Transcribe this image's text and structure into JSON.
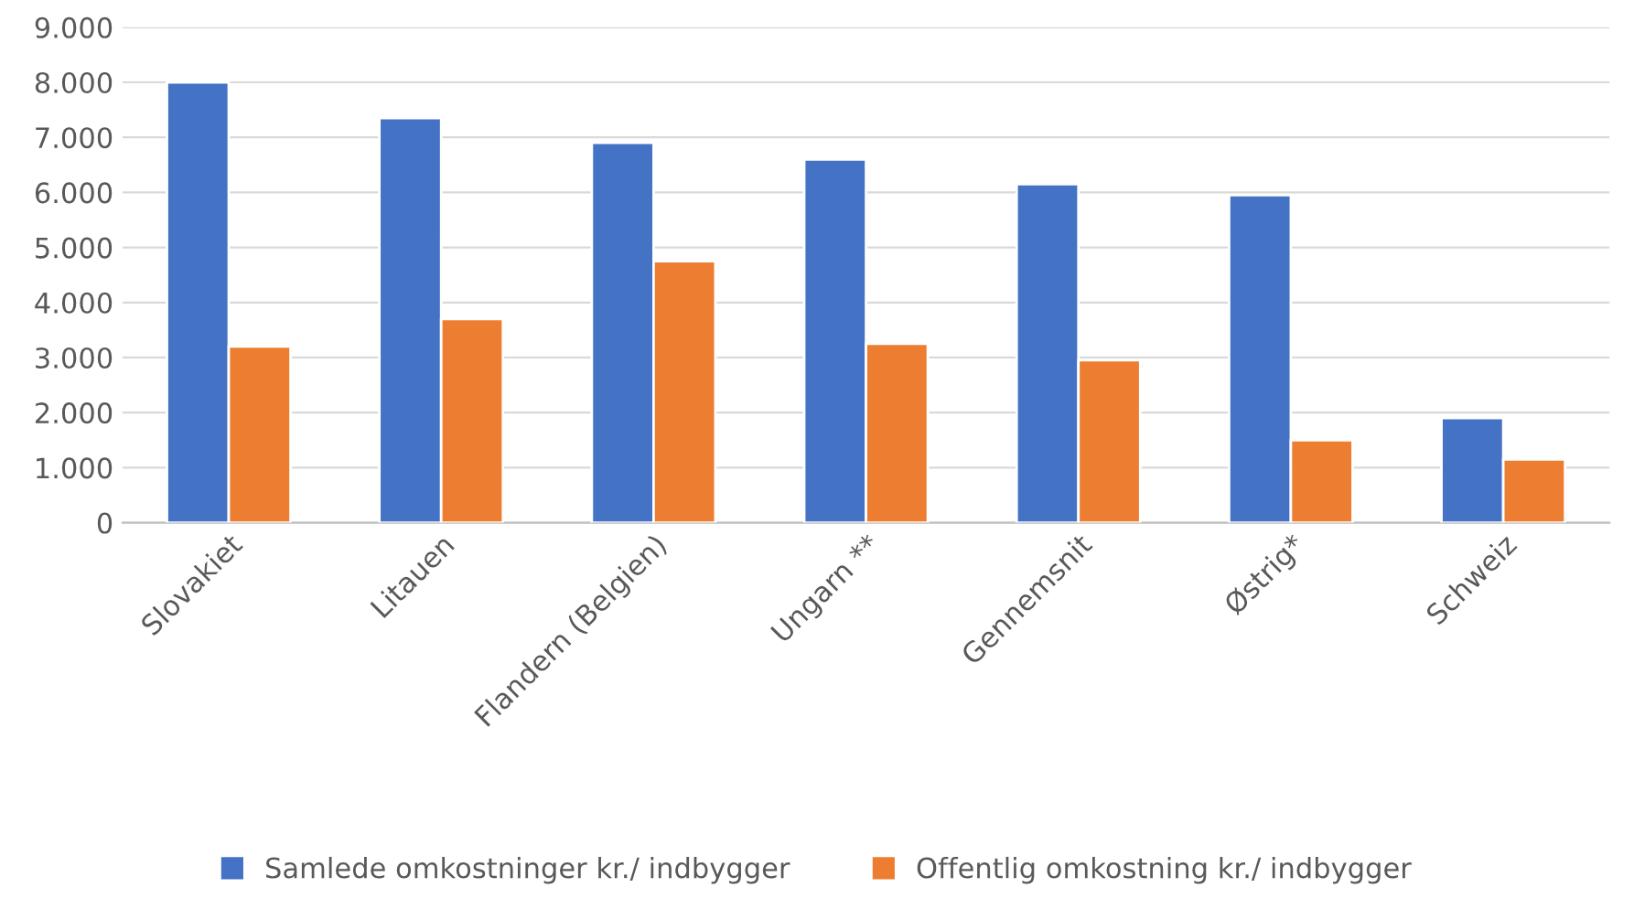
{
  "chart_data": {
    "type": "bar",
    "categories": [
      "Slovakiet",
      "Litauen",
      "Flandern (Belgien)",
      "Ungarn **",
      "Gennemsnit",
      "Østrig*",
      "Schweiz"
    ],
    "series": [
      {
        "name": "Samlede omkostninger kr./ indbygger",
        "color": "#4472c4",
        "values": [
          8000,
          7350,
          6900,
          6600,
          6150,
          5950,
          1900
        ]
      },
      {
        "name": "Offentlig omkostning kr./ indbygger",
        "color": "#ed7d31",
        "values": [
          3200,
          3700,
          4750,
          3250,
          2950,
          1500,
          1150
        ]
      }
    ],
    "ylim": [
      0,
      9000
    ],
    "yticks": [
      {
        "value": 0,
        "label": "0"
      },
      {
        "value": 1000,
        "label": "1.000"
      },
      {
        "value": 2000,
        "label": "2.000"
      },
      {
        "value": 3000,
        "label": "3.000"
      },
      {
        "value": 4000,
        "label": "4.000"
      },
      {
        "value": 5000,
        "label": "5.000"
      },
      {
        "value": 6000,
        "label": "6.000"
      },
      {
        "value": 7000,
        "label": "7.000"
      },
      {
        "value": 8000,
        "label": "8.000"
      },
      {
        "value": 9000,
        "label": "9.000"
      }
    ],
    "grid": "y",
    "legend": "bottom"
  }
}
